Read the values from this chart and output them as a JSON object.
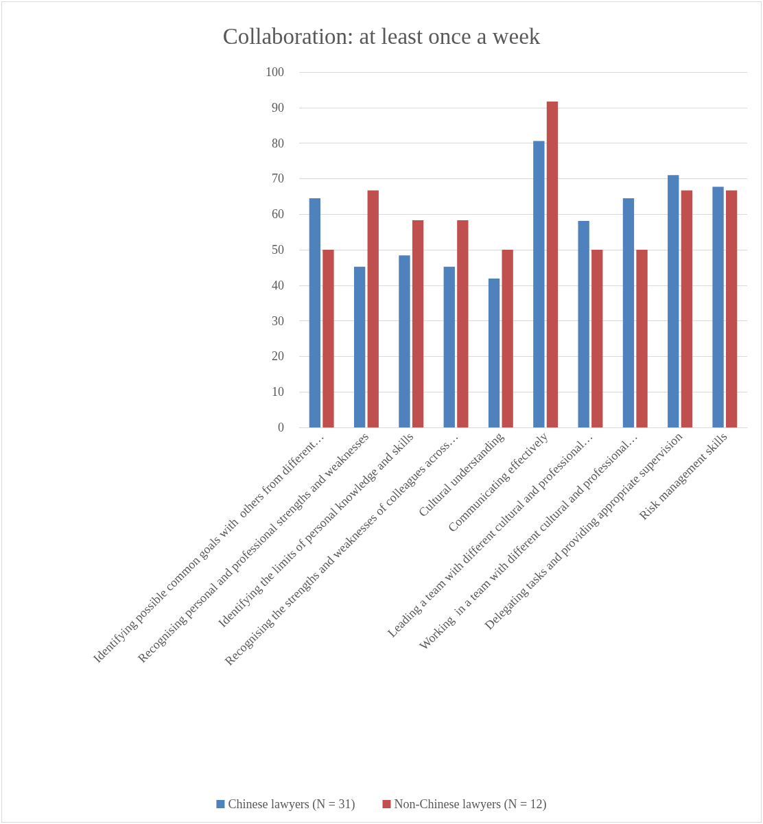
{
  "chart_data": {
    "type": "bar",
    "title": "Collaboration: at least once a week",
    "categories": [
      "Identifying possible common goals with  others from different…",
      "Recognising personal and professional strengths and weaknesses",
      "Identifying the limits of personal knowledge and skills",
      "Recognising the strengths and weaknesses of colleagues across…",
      "Cultural understanding",
      "Communicating effectively",
      "Leading a team with different cultural and professional…",
      "Working  in a team with different cultural and professional…",
      "Delegating tasks and providing appropriate supervision",
      "Risk management skills"
    ],
    "series": [
      {
        "name": "Chinese lawyers (N = 31)",
        "color": "#4f81bd",
        "values": [
          64.5,
          45.2,
          48.4,
          45.2,
          41.9,
          80.6,
          58.1,
          64.5,
          71.0,
          67.7
        ]
      },
      {
        "name": "Non-Chinese lawyers (N = 12)",
        "color": "#c0504d",
        "values": [
          50,
          66.7,
          58.3,
          58.3,
          50,
          91.7,
          50,
          50,
          66.7,
          66.7
        ]
      }
    ],
    "ylim": [
      0,
      100
    ],
    "yticks": [
      0,
      10,
      20,
      30,
      40,
      50,
      60,
      70,
      80,
      90,
      100
    ],
    "grid": "y",
    "legend": "bottom"
  }
}
